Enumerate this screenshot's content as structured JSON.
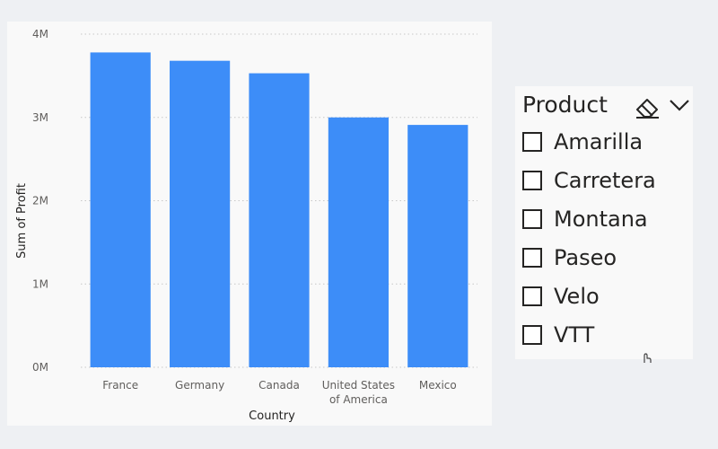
{
  "chart_data": {
    "type": "bar",
    "categories": [
      "France",
      "Germany",
      "Canada",
      "United States of America",
      "Mexico"
    ],
    "category_lines": [
      [
        "France"
      ],
      [
        "Germany"
      ],
      [
        "Canada"
      ],
      [
        "United States",
        "of America"
      ],
      [
        "Mexico"
      ]
    ],
    "values": [
      3780000,
      3680000,
      3530000,
      3000000,
      2910000
    ],
    "xlabel": "Country",
    "ylabel": "Sum of Profit",
    "ylim": [
      0,
      4000000
    ],
    "yticks": [
      0,
      1000000,
      2000000,
      3000000,
      4000000
    ],
    "ytick_labels": [
      "0M",
      "1M",
      "2M",
      "3M",
      "4M"
    ],
    "grid": true,
    "bar_color": "#3d8df8",
    "grid_color": "#c8c8c8"
  },
  "slicer": {
    "title": "Product",
    "items": [
      "Amarilla",
      "Carretera",
      "Montana",
      "Paseo",
      "Velo",
      "VTT"
    ]
  }
}
